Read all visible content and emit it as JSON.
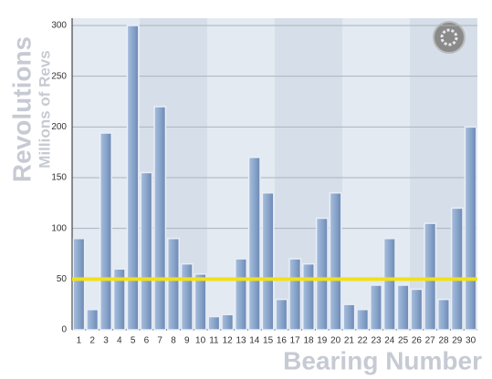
{
  "chart_data": {
    "type": "bar",
    "y_title": "Revolutions",
    "y_subtitle": "Millions of Revs",
    "x_title": "Bearing Number",
    "categories": [
      "1",
      "2",
      "3",
      "4",
      "5",
      "6",
      "7",
      "8",
      "9",
      "10",
      "11",
      "12",
      "13",
      "14",
      "15",
      "16",
      "17",
      "18",
      "19",
      "20",
      "21",
      "22",
      "23",
      "24",
      "25",
      "26",
      "27",
      "28",
      "29",
      "30"
    ],
    "values": [
      90,
      20,
      194,
      60,
      300,
      155,
      220,
      90,
      65,
      55,
      13,
      15,
      70,
      170,
      135,
      30,
      70,
      65,
      110,
      135,
      25,
      20,
      44,
      90,
      44,
      40,
      105,
      30,
      120,
      200
    ],
    "color": "#7f9cc4",
    "threshold": 50,
    "threshold_color": "#f2e017",
    "ylim": [
      0,
      300
    ],
    "yticks": [
      0,
      50,
      100,
      150,
      200,
      250,
      300
    ],
    "grid": true
  }
}
